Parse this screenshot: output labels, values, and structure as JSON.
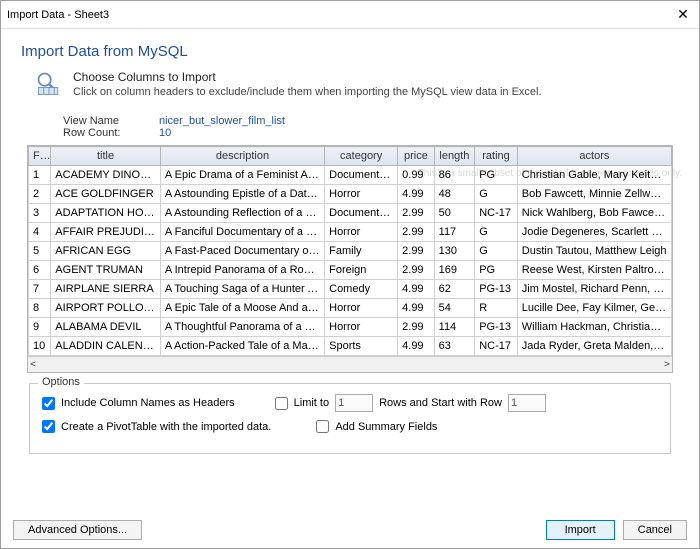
{
  "window": {
    "title": "Import Data - Sheet3"
  },
  "heading": "Import Data from MySQL",
  "intro": {
    "title": "Choose Columns to Import",
    "desc": "Click on column headers to exclude/include them when importing the MySQL view data in Excel."
  },
  "meta": {
    "view_name_label": "View Name",
    "view_name_value": "nicer_but_slower_film_list",
    "row_count_label": "Row Count:",
    "row_count_value": "10",
    "preview_note": "This is a small subset of the data for preview purposes only."
  },
  "table": {
    "columns": [
      "FI...",
      "title",
      "description",
      "category",
      "price",
      "length",
      "rating",
      "actors"
    ],
    "rows": [
      [
        "1",
        "ACADEMY DINOSAUR",
        "A Epic Drama of a Feminist And a Ma...",
        "Documentary",
        "0.99",
        "86",
        "PG",
        "Christian Gable, Mary Keitel, L"
      ],
      [
        "2",
        "ACE GOLDFINGER",
        "A Astounding Epistle of a Database A...",
        "Horror",
        "4.99",
        "48",
        "G",
        "Bob Fawcett, Minnie Zellweger"
      ],
      [
        "3",
        "ADAPTATION HOLES",
        "A Astounding Reflection of a Lumberj...",
        "Documentary",
        "2.99",
        "50",
        "NC-17",
        "Nick Wahlberg, Bob Fawcett, C"
      ],
      [
        "4",
        "AFFAIR PREJUDICE",
        "A Fanciful Documentary of a Frisbee A...",
        "Horror",
        "2.99",
        "117",
        "G",
        "Jodie Degeneres, Scarlett Dam"
      ],
      [
        "5",
        "AFRICAN EGG",
        "A Fast-Paced Documentary of a Pastry...",
        "Family",
        "2.99",
        "130",
        "G",
        "Dustin Tautou, Matthew Leigh"
      ],
      [
        "6",
        "AGENT TRUMAN",
        "A Intrepid Panorama of a Robot And a...",
        "Foreign",
        "2.99",
        "169",
        "PG",
        "Reese West, Kirsten Paltrow, S"
      ],
      [
        "7",
        "AIRPLANE SIERRA",
        "A Touching Saga of a Hunter And a Bu...",
        "Comedy",
        "4.99",
        "62",
        "PG-13",
        "Jim Mostel, Richard Penn, Opr"
      ],
      [
        "8",
        "AIRPORT POLLOCK",
        "A Epic Tale of a Moose And a Girl who...",
        "Horror",
        "4.99",
        "54",
        "R",
        "Lucille Dee, Fay Kilmer, Gene W"
      ],
      [
        "9",
        "ALABAMA DEVIL",
        "A Thoughtful Panorama of a Database...",
        "Horror",
        "2.99",
        "114",
        "PG-13",
        "William Hackman, Christian G"
      ],
      [
        "10",
        "ALADDIN CALENDAR",
        "A Action-Packed Tale of a Man And a ...",
        "Sports",
        "4.99",
        "63",
        "NC-17",
        "Jada Ryder, Greta Malden, Roc"
      ]
    ]
  },
  "options": {
    "legend": "Options",
    "include_headers": "Include Column Names as Headers",
    "create_pivot": "Create a PivotTable with the imported data.",
    "limit_to": "Limit to",
    "limit_value": "1",
    "rows_start_label": "Rows and Start with Row",
    "rows_start_value": "1",
    "add_summary": "Add Summary Fields"
  },
  "buttons": {
    "advanced": "Advanced Options...",
    "import": "Import",
    "cancel": "Cancel"
  }
}
